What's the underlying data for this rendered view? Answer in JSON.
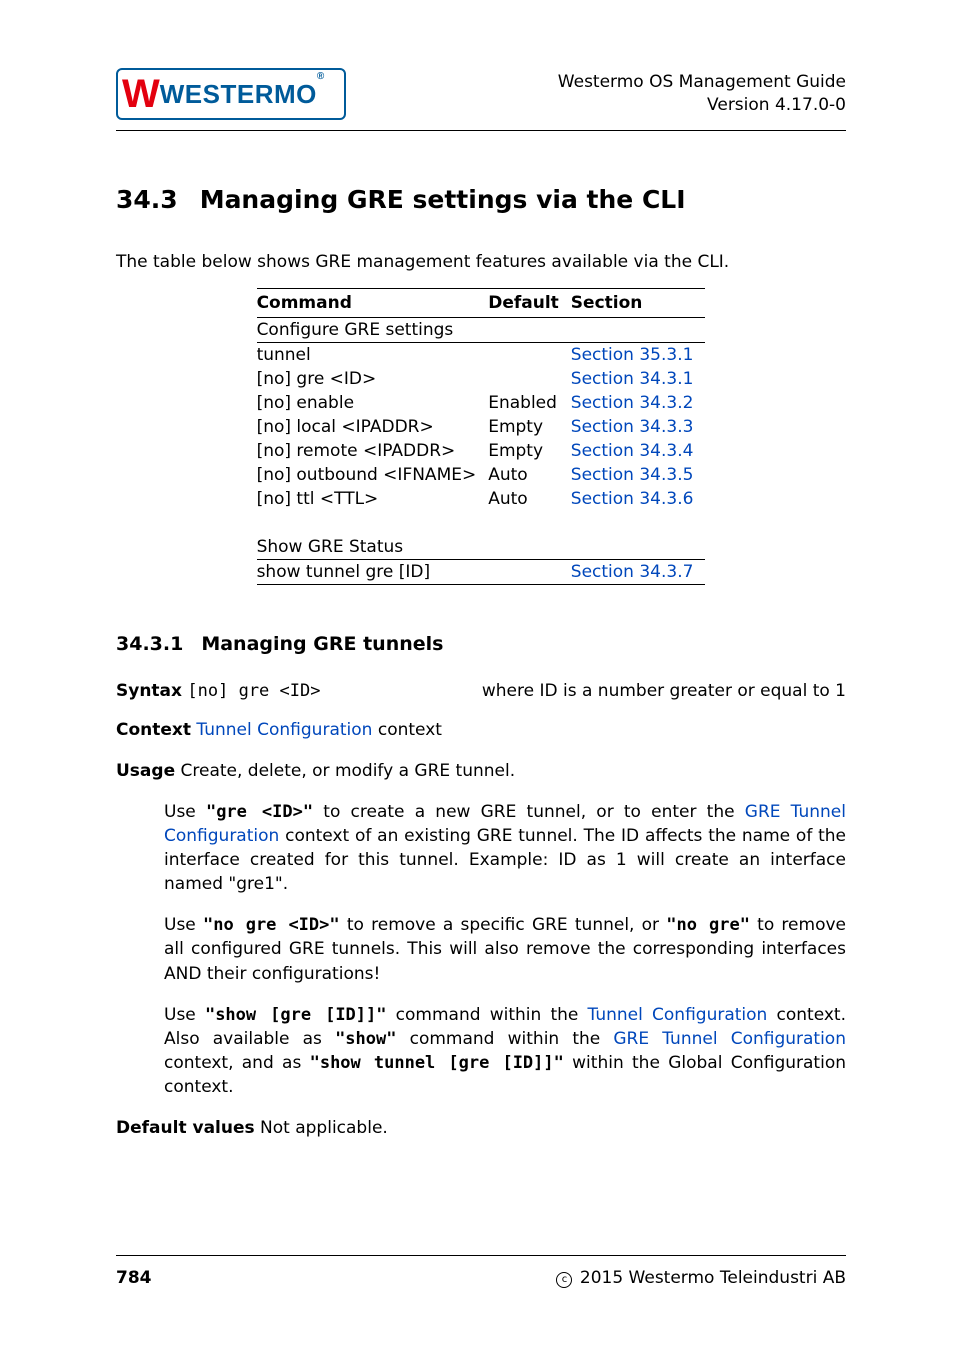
{
  "colors": {
    "link": "#0047bb",
    "logo_border": "#005b9a",
    "logo_w": "#e3000f",
    "logo_text": "#005b9a",
    "rule": "#000000",
    "bg": "#ffffff",
    "text": "#000000"
  },
  "header": {
    "guide_title": "Westermo OS Management Guide",
    "version": "Version 4.17.0-0",
    "logo_brand": "Westermo"
  },
  "section": {
    "number": "34.3",
    "title": "Managing GRE settings via the CLI",
    "intro": "The table below shows GRE management features available via the CLI."
  },
  "table": {
    "headers": {
      "command": "Command",
      "default": "Default",
      "section": "Section"
    },
    "rows": [
      {
        "type": "section",
        "command": "Configure GRE settings",
        "default": "",
        "section": ""
      },
      {
        "type": "row",
        "indent": 0,
        "command": "tunnel",
        "default": "",
        "section": "Section 35.3.1"
      },
      {
        "type": "row",
        "indent": 1,
        "command": "[no] gre <ID>",
        "default": "",
        "section": "Section 34.3.1"
      },
      {
        "type": "row",
        "indent": 2,
        "command": "[no] enable",
        "default": "Enabled",
        "section": "Section 34.3.2"
      },
      {
        "type": "row",
        "indent": 2,
        "command": "[no] local <IPADDR>",
        "default": "Empty",
        "section": "Section 34.3.3"
      },
      {
        "type": "row",
        "indent": 2,
        "command": "[no] remote <IPADDR>",
        "default": "Empty",
        "section": "Section 34.3.4"
      },
      {
        "type": "row",
        "indent": 2,
        "command": "[no] outbound <IFNAME>",
        "default": "Auto",
        "section": "Section 34.3.5"
      },
      {
        "type": "row",
        "indent": 2,
        "command": "[no] ttl <TTL>",
        "default": "Auto",
        "section": "Section 34.3.6"
      },
      {
        "type": "spacer"
      },
      {
        "type": "section",
        "command": "Show GRE Status",
        "default": "",
        "section": ""
      },
      {
        "type": "last",
        "indent": 0,
        "command": "show tunnel gre [ID]",
        "default": "",
        "section": "Section 34.3.7"
      }
    ]
  },
  "subsection": {
    "number": "34.3.1",
    "title": "Managing GRE tunnels"
  },
  "syntax": {
    "label": "Syntax",
    "code": "[no] gre <ID>",
    "note": "where ID is a number greater or equal to 1"
  },
  "context": {
    "label": "Context",
    "link_text": "Tunnel Configuration",
    "suffix": " context"
  },
  "usage": {
    "label": "Usage",
    "lead": " Create, delete, or modify a GRE tunnel.",
    "p1_a": "Use ",
    "p1_code": "\"gre <ID>\"",
    "p1_b": " to create a new GRE tunnel, or to enter the ",
    "p1_link": "GRE Tunnel Configuration",
    "p1_c": " context of an existing GRE tunnel. The ID affects the name of the interface created for this tunnel. Example: ID as 1 will create an interface named \"gre1\".",
    "p2_a": "Use ",
    "p2_code1": "\"no gre <ID>\"",
    "p2_b": " to remove a specific GRE tunnel, or ",
    "p2_code2": "\"no gre\"",
    "p2_c": " to remove all configured GRE tunnels. This will also remove the corresponding interfaces AND their configurations!",
    "p3_a": "Use ",
    "p3_code1": "\"show [gre [ID]]\"",
    "p3_b": " command within the ",
    "p3_link1": "Tunnel Configuration",
    "p3_c": " context. Also available as ",
    "p3_code2": "\"show\"",
    "p3_d": " command within the ",
    "p3_link2": "GRE Tunnel Configuration",
    "p3_e": " context, and as ",
    "p3_code3": "\"show tunnel [gre [ID]]\"",
    "p3_f": " within the Global Configuration context."
  },
  "default_values": {
    "label": "Default values",
    "text": " Not applicable."
  },
  "footer": {
    "page": "784",
    "copyright": " 2015 Westermo Teleindustri AB"
  }
}
